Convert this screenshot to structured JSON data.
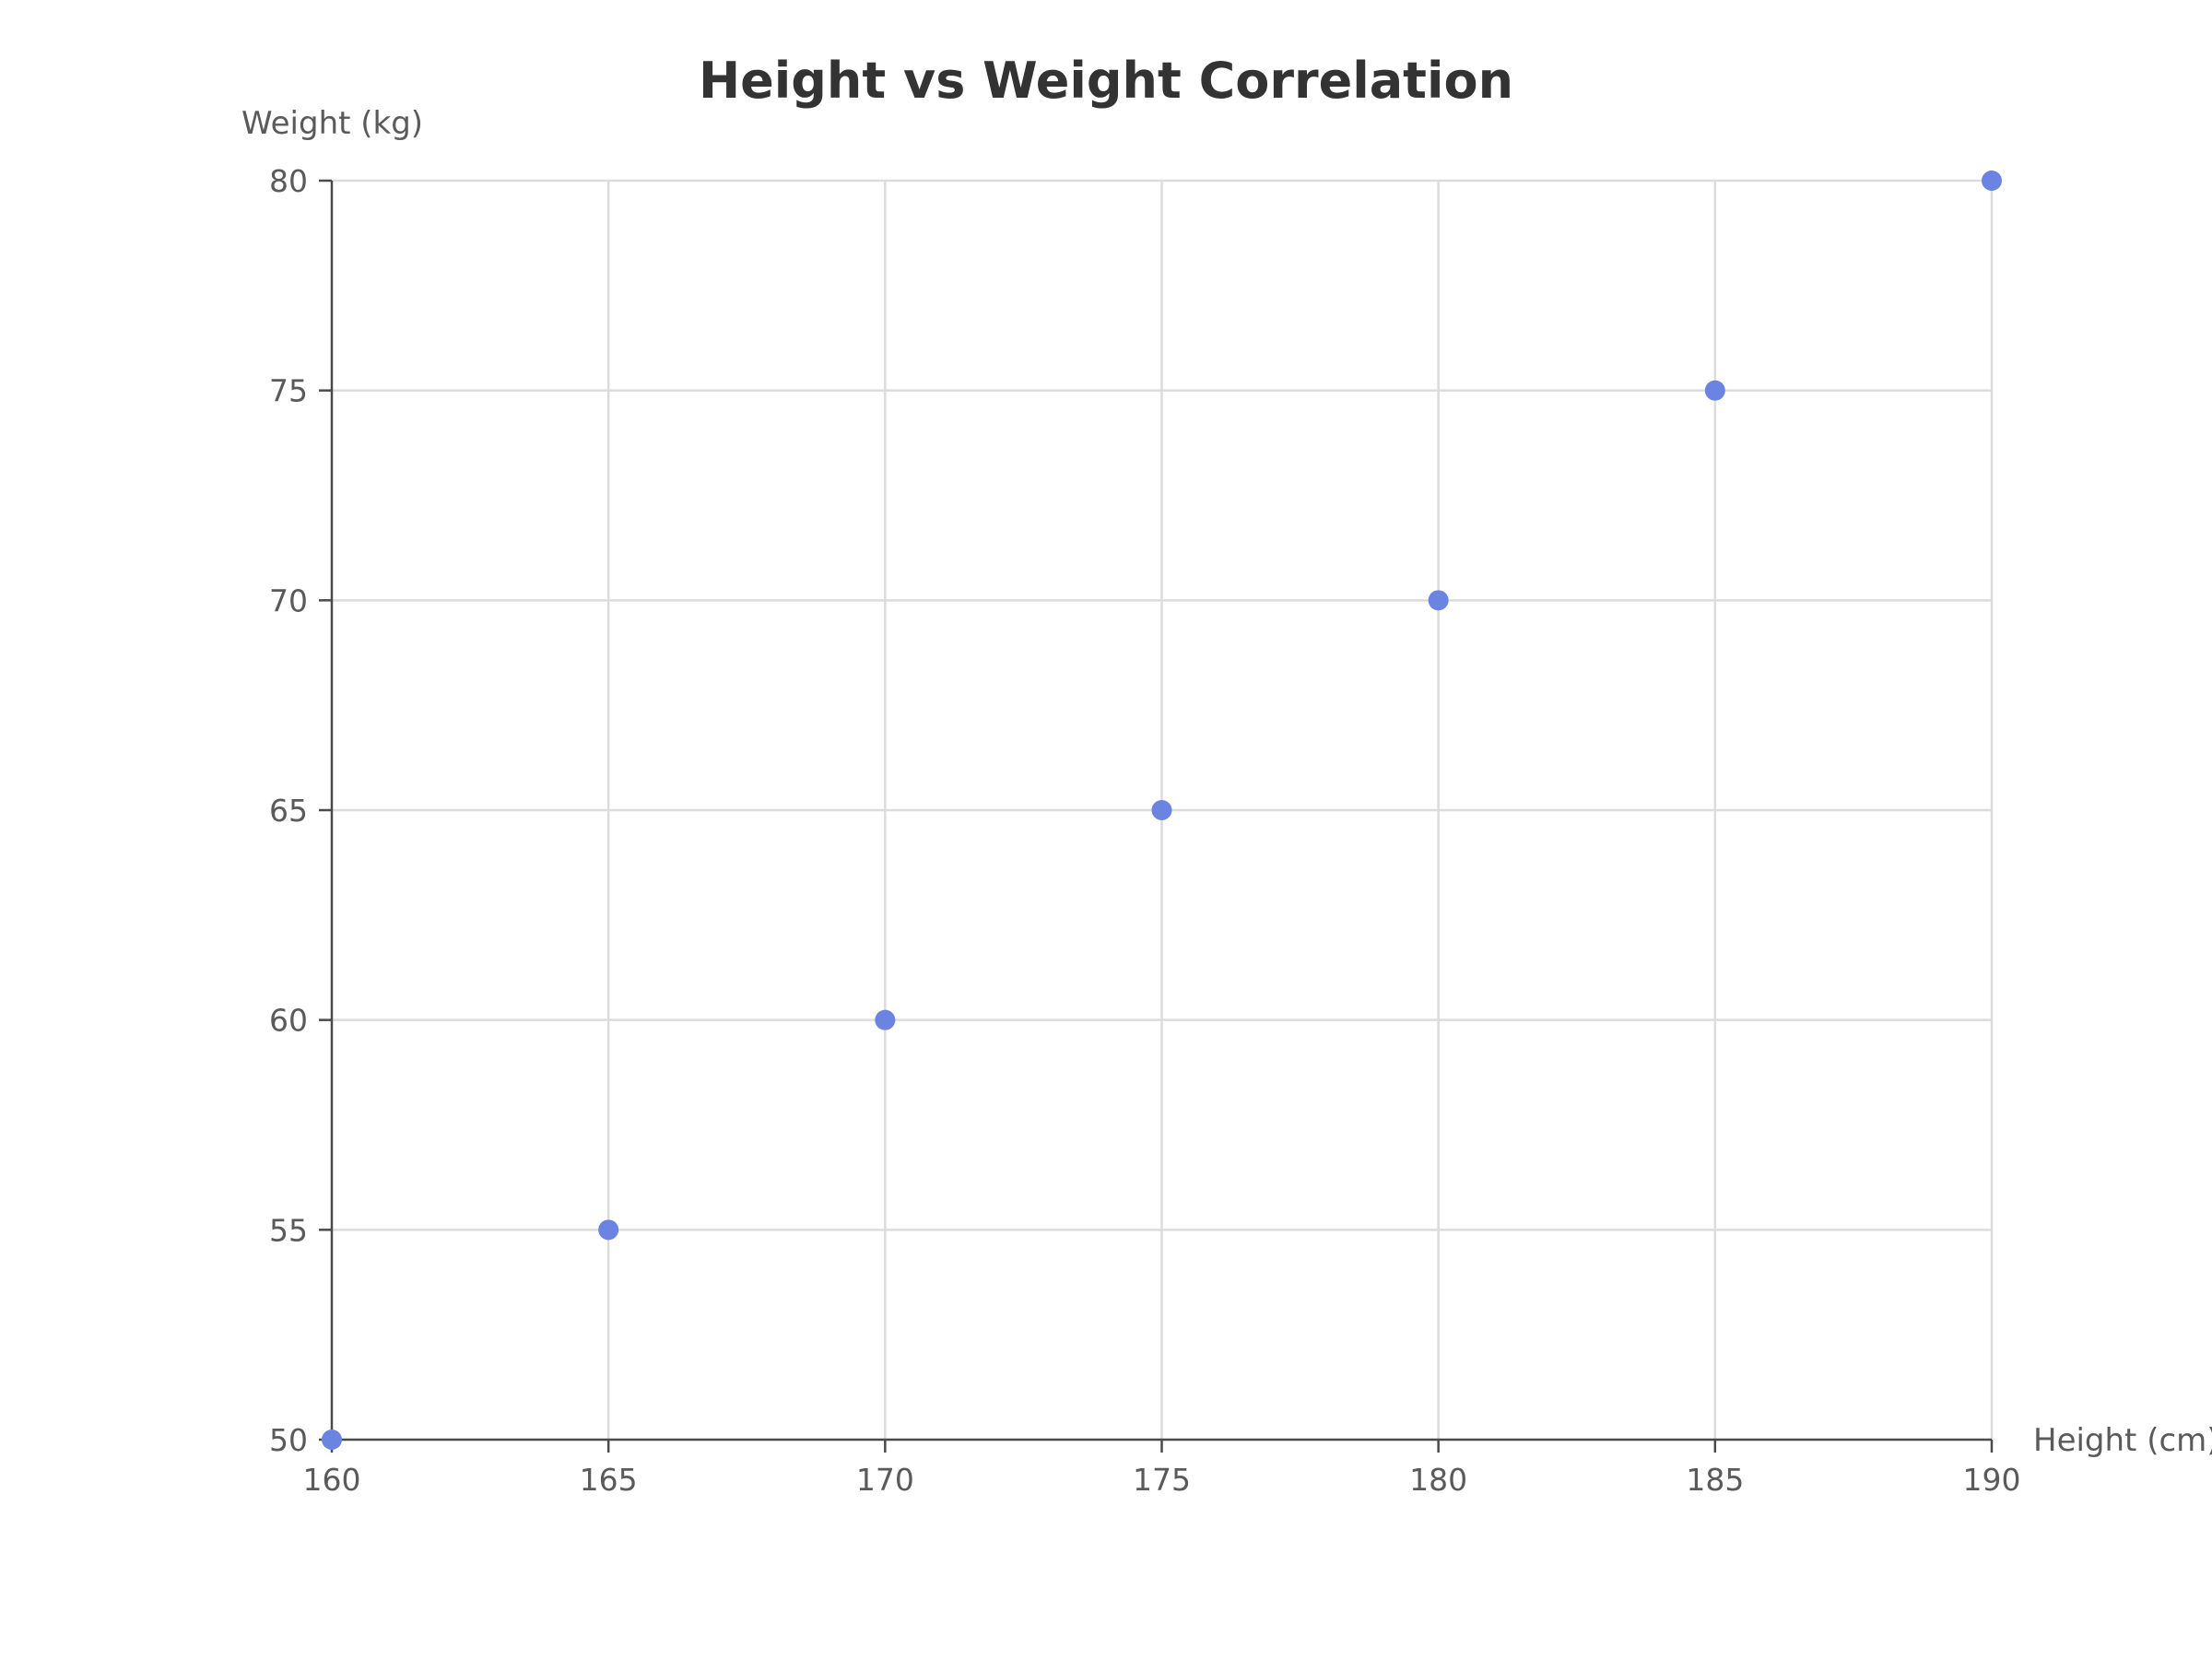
{
  "chart_data": {
    "type": "scatter",
    "title": "Height vs Weight Correlation",
    "xlabel": "Height (cm)",
    "ylabel": "Weight (kg)",
    "xlim": [
      160,
      190
    ],
    "ylim": [
      50,
      80
    ],
    "x_ticks": [
      160,
      165,
      170,
      175,
      180,
      185,
      190
    ],
    "y_ticks": [
      50,
      55,
      60,
      65,
      70,
      75,
      80
    ],
    "grid": true,
    "legend": "none",
    "series": [
      {
        "points": [
          {
            "x": 160,
            "y": 50
          },
          {
            "x": 165,
            "y": 55
          },
          {
            "x": 170,
            "y": 60
          },
          {
            "x": 175,
            "y": 65
          },
          {
            "x": 180,
            "y": 70
          },
          {
            "x": 185,
            "y": 75
          },
          {
            "x": 190,
            "y": 80
          }
        ],
        "color": "#6b84e2"
      }
    ]
  }
}
